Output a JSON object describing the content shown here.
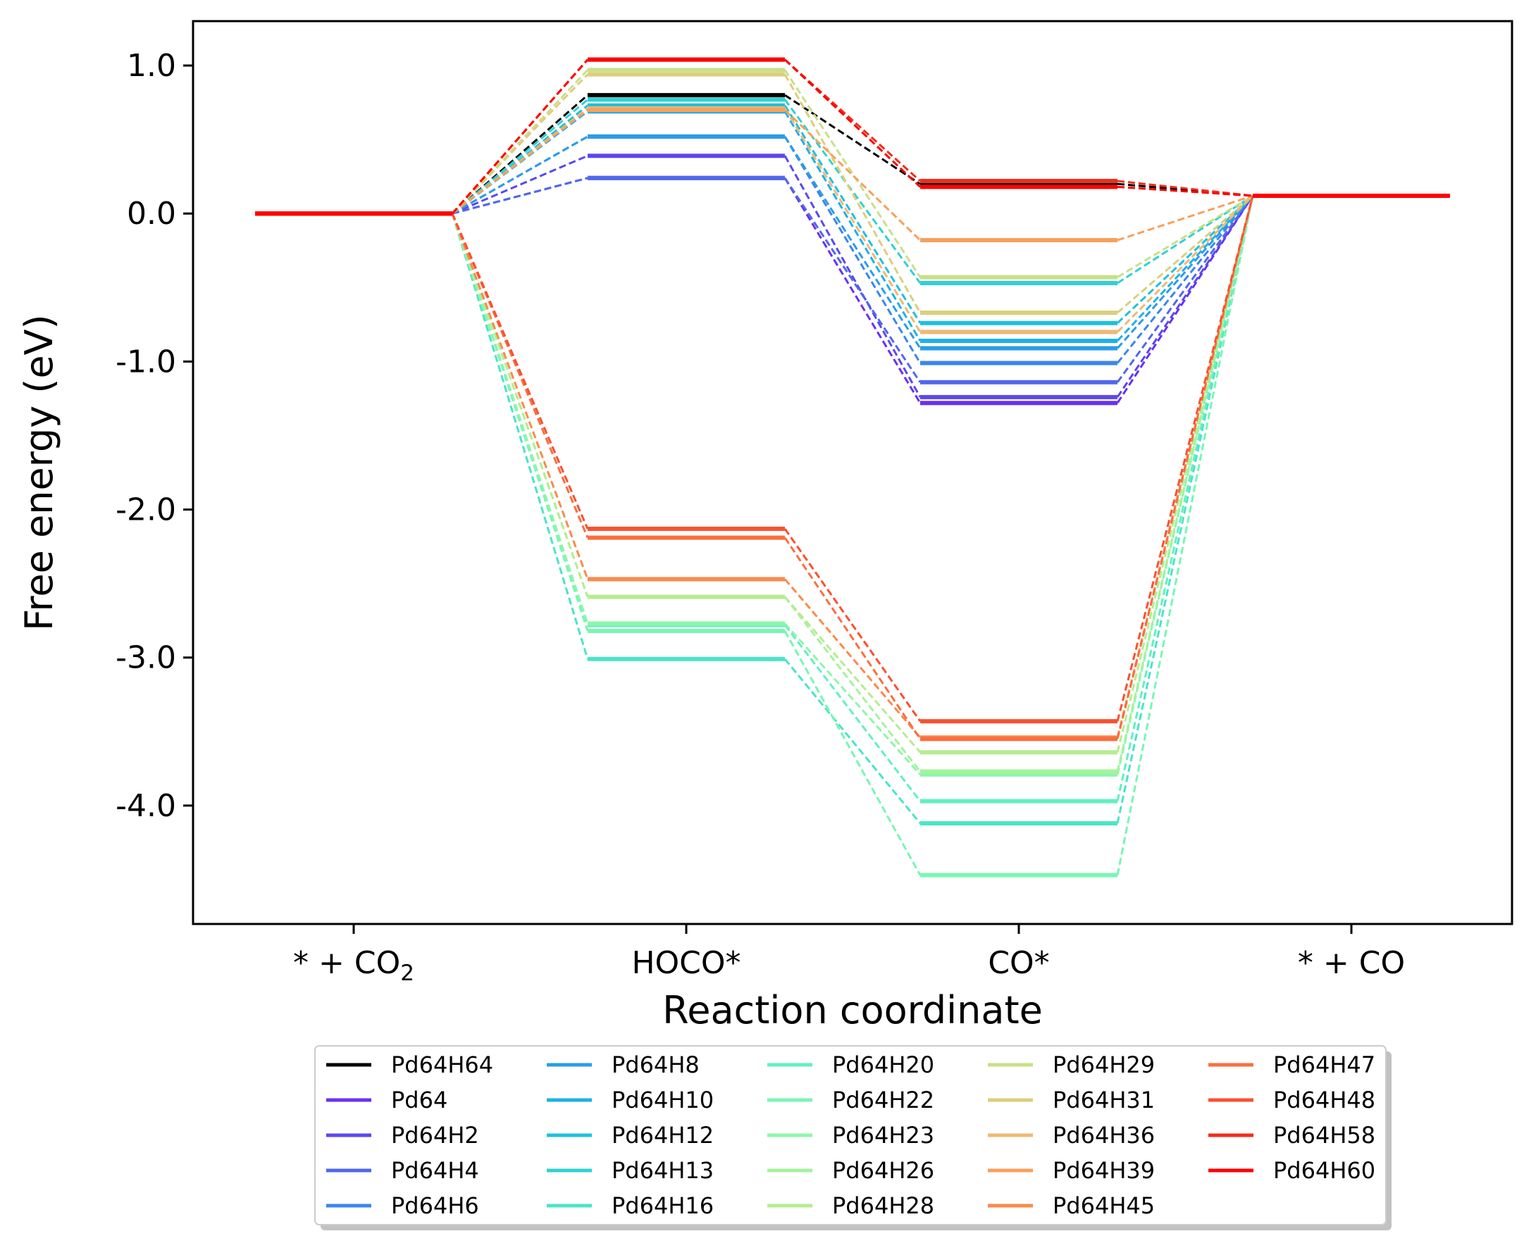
{
  "chart_data": {
    "type": "line",
    "xlabel": "Reaction coordinate",
    "ylabel": "Free energy (eV)",
    "ylim": [
      -4.8,
      1.3
    ],
    "categories": [
      {
        "main": "* + CO",
        "sub": "2"
      },
      {
        "main": "HOCO*",
        "sub": ""
      },
      {
        "main": "CO*",
        "sub": ""
      },
      {
        "main": "* + CO",
        "sub": ""
      }
    ],
    "yticks": [
      {
        "value": 1.0,
        "label": "1.0"
      },
      {
        "value": 0.0,
        "label": "0.0"
      },
      {
        "value": -1.0,
        "label": "-1.0"
      },
      {
        "value": -2.0,
        "label": "-2.0"
      },
      {
        "value": -3.0,
        "label": "-3.0"
      },
      {
        "value": -4.0,
        "label": "-4.0"
      }
    ],
    "grid": false,
    "legend_position": "below",
    "legend_columns": 5,
    "series": [
      {
        "name": "Pd64H64",
        "color": "#000000",
        "values": [
          0.0,
          0.8,
          0.2,
          0.12
        ]
      },
      {
        "name": "Pd64",
        "color": "#6a2ff5",
        "values": [
          0.0,
          0.24,
          -1.28,
          0.12
        ]
      },
      {
        "name": "Pd64H2",
        "color": "#5a48ef",
        "values": [
          0.0,
          0.39,
          -1.24,
          0.12
        ]
      },
      {
        "name": "Pd64H4",
        "color": "#4f68ea",
        "values": [
          0.0,
          0.24,
          -1.14,
          0.12
        ]
      },
      {
        "name": "Pd64H6",
        "color": "#3a86ec",
        "values": [
          0.0,
          0.52,
          -1.01,
          0.12
        ]
      },
      {
        "name": "Pd64H8",
        "color": "#2a9cea",
        "values": [
          0.0,
          0.52,
          -0.91,
          0.12
        ]
      },
      {
        "name": "Pd64H10",
        "color": "#1db0ec",
        "values": [
          0.0,
          0.69,
          -0.86,
          0.12
        ]
      },
      {
        "name": "Pd64H12",
        "color": "#1fc0de",
        "values": [
          0.0,
          0.73,
          -0.74,
          0.12
        ]
      },
      {
        "name": "Pd64H13",
        "color": "#2fd2d0",
        "values": [
          0.0,
          0.77,
          -0.47,
          0.12
        ]
      },
      {
        "name": "Pd64H16",
        "color": "#4ae4c8",
        "values": [
          0.0,
          -3.01,
          -4.12,
          0.12
        ]
      },
      {
        "name": "Pd64H20",
        "color": "#62f0c0",
        "values": [
          0.0,
          -2.78,
          -3.97,
          0.12
        ]
      },
      {
        "name": "Pd64H22",
        "color": "#78f6b4",
        "values": [
          0.0,
          -2.82,
          -4.47,
          0.12
        ]
      },
      {
        "name": "Pd64H23",
        "color": "#8cf7a8",
        "values": [
          0.0,
          -2.77,
          -3.79,
          0.12
        ]
      },
      {
        "name": "Pd64H26",
        "color": "#a3f39c",
        "values": [
          0.0,
          -2.59,
          -3.77,
          0.12
        ]
      },
      {
        "name": "Pd64H28",
        "color": "#b6ec90",
        "values": [
          0.0,
          -2.59,
          -3.64,
          0.12
        ]
      },
      {
        "name": "Pd64H29",
        "color": "#c8e088",
        "values": [
          0.0,
          0.97,
          -0.43,
          0.12
        ]
      },
      {
        "name": "Pd64H31",
        "color": "#dcce7c",
        "values": [
          0.0,
          0.94,
          -0.67,
          0.12
        ]
      },
      {
        "name": "Pd64H36",
        "color": "#f0b874",
        "values": [
          0.0,
          0.71,
          -0.8,
          0.12
        ]
      },
      {
        "name": "Pd64H39",
        "color": "#f8a05c",
        "values": [
          0.0,
          0.7,
          -0.18,
          0.12
        ]
      },
      {
        "name": "Pd64H45",
        "color": "#fa8a4a",
        "values": [
          0.0,
          -2.47,
          -3.54,
          0.12
        ]
      },
      {
        "name": "Pd64H47",
        "color": "#fb6e3e",
        "values": [
          0.0,
          -2.19,
          -3.55,
          0.12
        ]
      },
      {
        "name": "Pd64H48",
        "color": "#fa5030",
        "values": [
          0.0,
          -2.13,
          -3.43,
          0.12
        ]
      },
      {
        "name": "Pd64H58",
        "color": "#f32c1a",
        "values": [
          0.0,
          1.04,
          0.22,
          0.12
        ]
      },
      {
        "name": "Pd64H60",
        "color": "#ff0000",
        "values": [
          0.0,
          1.04,
          0.18,
          0.12
        ]
      }
    ]
  }
}
